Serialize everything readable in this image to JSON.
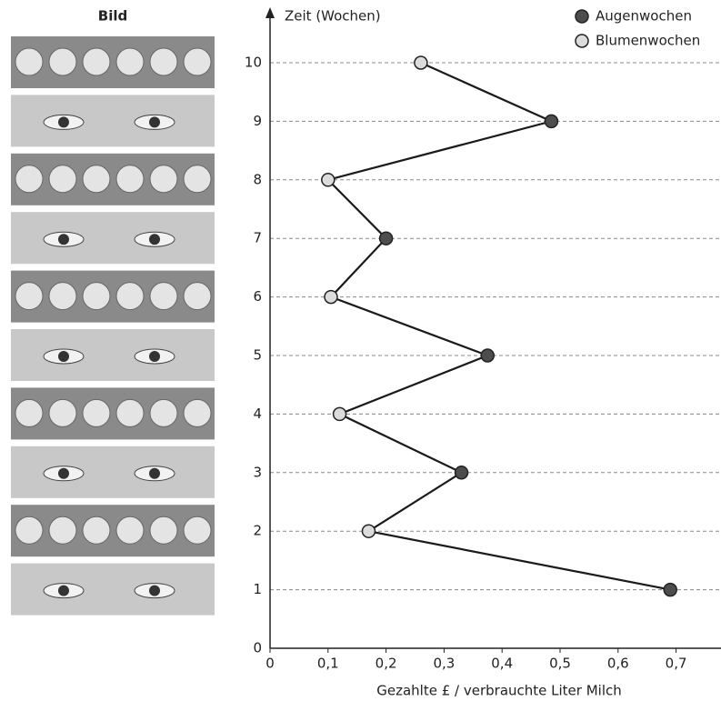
{
  "panel": {
    "title": "Bild"
  },
  "chart_data": {
    "type": "scatter-line",
    "x_label": "Gezahlte £ / verbrauchte Liter Milch",
    "y_label": "Zeit (Wochen)",
    "xlim": [
      0,
      0.76
    ],
    "ylim": [
      0,
      11
    ],
    "xticks": [
      0,
      {
        "value": 0.1,
        "label": "0,1"
      },
      {
        "value": 0.2,
        "label": "0,2"
      },
      {
        "value": 0.3,
        "label": "0,3"
      },
      {
        "value": 0.4,
        "label": "0,4"
      },
      {
        "value": 0.5,
        "label": "0,5"
      },
      {
        "value": 0.6,
        "label": "0,6"
      },
      {
        "value": 0.7,
        "label": "0,7"
      }
    ],
    "yticks": [
      0,
      1,
      2,
      3,
      4,
      5,
      6,
      7,
      8,
      9,
      10
    ],
    "grid": true,
    "legend": "top-right",
    "line_color": "#1a1a1a",
    "series": [
      {
        "name": "Augenwochen",
        "color": "#4d4d4d",
        "y": [
          1,
          3,
          5,
          7,
          9
        ],
        "values": [
          0.69,
          0.33,
          0.375,
          0.2,
          0.485
        ]
      },
      {
        "name": "Blumenwochen",
        "color": "#dcdcdc",
        "y": [
          2,
          4,
          6,
          8,
          10
        ],
        "values": [
          0.17,
          0.12,
          0.105,
          0.1,
          0.26
        ]
      }
    ]
  }
}
